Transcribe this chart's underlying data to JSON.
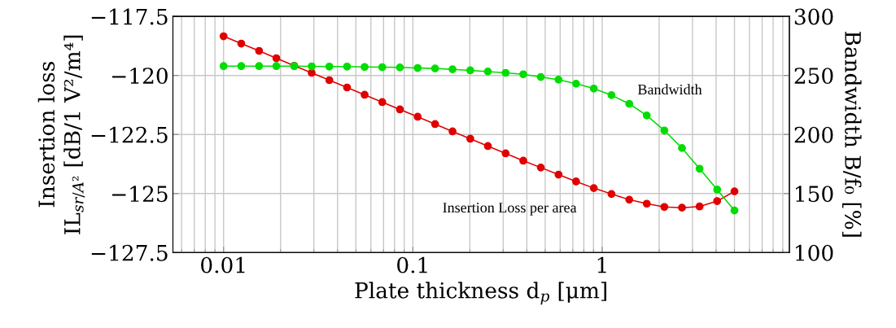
{
  "chart_data": {
    "type": "line",
    "xlabel": "Plate thickness d$_{p}$ [μm]",
    "ylabel": "Insertion loss\nIL$_{sr/A²}$ [dB/1 V²/m⁴]",
    "y2label": "Bandwidth B/f₀ [%]",
    "x": [
      0.01,
      0.0124,
      0.0154,
      0.019,
      0.0236,
      0.0292,
      0.0362,
      0.0449,
      0.0556,
      0.0689,
      0.0854,
      0.106,
      0.131,
      0.162,
      0.201,
      0.249,
      0.309,
      0.383,
      0.474,
      0.588,
      0.728,
      0.903,
      1.12,
      1.39,
      1.72,
      2.13,
      2.64,
      3.27,
      4.05,
      5.0
    ],
    "series": [
      {
        "name": "Insertion Loss per area",
        "color": "#e00000",
        "values": [
          -118.34,
          -118.65,
          -118.96,
          -119.27,
          -119.59,
          -119.89,
          -120.2,
          -120.51,
          -120.82,
          -121.13,
          -121.44,
          -121.75,
          -122.06,
          -122.37,
          -122.68,
          -122.99,
          -123.3,
          -123.61,
          -123.9,
          -124.2,
          -124.49,
          -124.77,
          -125.02,
          -125.26,
          -125.43,
          -125.57,
          -125.6,
          -125.55,
          -125.32,
          -124.91
        ]
      },
      {
        "name": "Bandwidth",
        "color": "#00dd00",
        "axis": "y2",
        "values": [
          257.9,
          257.9,
          257.9,
          257.9,
          257.9,
          257.7,
          257.5,
          257.5,
          257.2,
          257.0,
          256.8,
          256.3,
          255.9,
          255.2,
          254.3,
          253.3,
          252.2,
          251.0,
          248.7,
          246.4,
          243.0,
          238.9,
          233.3,
          226.0,
          216.1,
          203.4,
          188.5,
          171.0,
          153.3,
          135.6
        ]
      }
    ],
    "log": "x",
    "xlim": [
      0.0054,
      9.75
    ],
    "xticks": [
      0.01,
      0.1,
      1
    ],
    "ylim": [
      -127.5,
      -117.5
    ],
    "yticks": [
      {
        "value": -127.5,
        "label": "−127.5"
      },
      {
        "value": -125,
        "label": "−125"
      },
      {
        "value": -122.5,
        "label": "−122.5"
      },
      {
        "value": -120,
        "label": "−120"
      },
      {
        "value": -117.5,
        "label": "−117.5"
      }
    ],
    "y2lim": [
      100,
      300
    ],
    "y2ticks": [
      100,
      150,
      200,
      250,
      300
    ],
    "grid": true,
    "marker": "circle",
    "line_style": "solid",
    "legend": false
  }
}
